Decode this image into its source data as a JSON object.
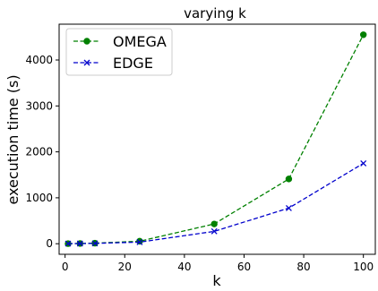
{
  "chart_data": {
    "type": "line",
    "title": "varying k",
    "xlabel": "k",
    "ylabel": "execution time (s)",
    "xlim": [
      -2,
      104
    ],
    "ylim": [
      -230,
      4780
    ],
    "xticks": [
      0,
      20,
      40,
      60,
      80,
      100
    ],
    "yticks": [
      0,
      1000,
      2000,
      3000,
      4000
    ],
    "grid": false,
    "legend": "top-left",
    "series": [
      {
        "name": "OMEGA",
        "color": "#008000",
        "marker": "circle",
        "linestyle": "dashed",
        "x": [
          1,
          5,
          10,
          25,
          50,
          75,
          100
        ],
        "y": [
          2,
          5,
          12,
          55,
          430,
          1410,
          4550
        ]
      },
      {
        "name": "EDGE",
        "color": "#0000cc",
        "marker": "x",
        "linestyle": "dashed",
        "x": [
          1,
          5,
          10,
          25,
          50,
          75,
          100
        ],
        "y": [
          2,
          4,
          8,
          35,
          270,
          775,
          1750
        ]
      }
    ]
  }
}
